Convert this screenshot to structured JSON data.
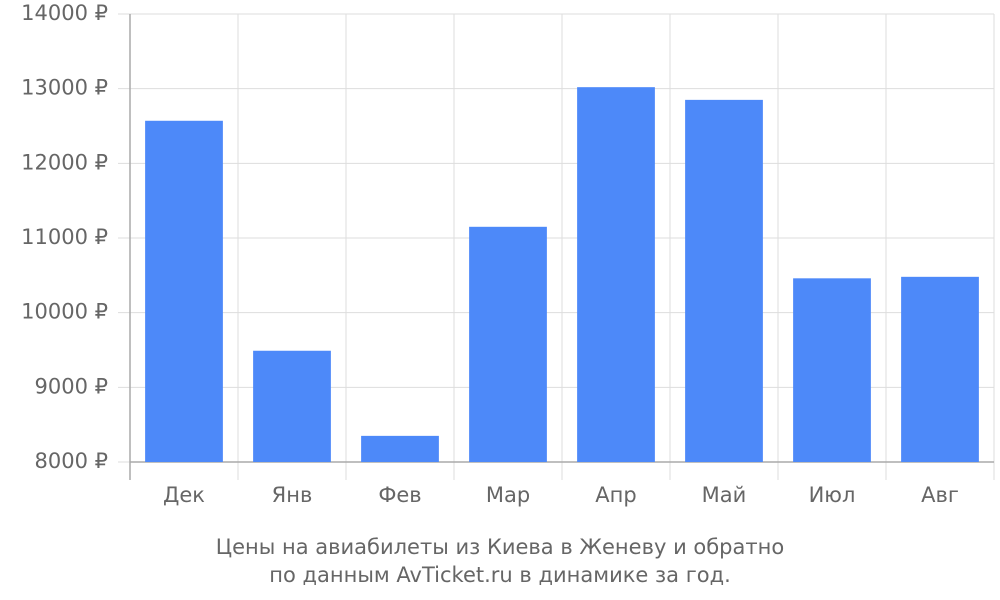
{
  "chart_data": {
    "type": "bar",
    "caption": [
      "Цены на авиабилеты из Киева в Женеву и обратно",
      "по данным AvTicket.ru в динамике за год."
    ],
    "categories": [
      "Дек",
      "Янв",
      "Фев",
      "Мар",
      "Апр",
      "Май",
      "Июл",
      "Авг"
    ],
    "values": [
      12570,
      9490,
      8350,
      11150,
      13020,
      12850,
      10460,
      10480
    ],
    "color": "#4d89f9",
    "ylim": [
      8000,
      14000
    ],
    "yticks": [
      {
        "value": 8000,
        "label": "8000 ₽"
      },
      {
        "value": 9000,
        "label": "9000 ₽"
      },
      {
        "value": 10000,
        "label": "10000 ₽"
      },
      {
        "value": 11000,
        "label": "11000 ₽"
      },
      {
        "value": 12000,
        "label": "12000 ₽"
      },
      {
        "value": 13000,
        "label": "13000 ₽"
      },
      {
        "value": 14000,
        "label": "14000 ₽"
      }
    ],
    "grid": true
  }
}
